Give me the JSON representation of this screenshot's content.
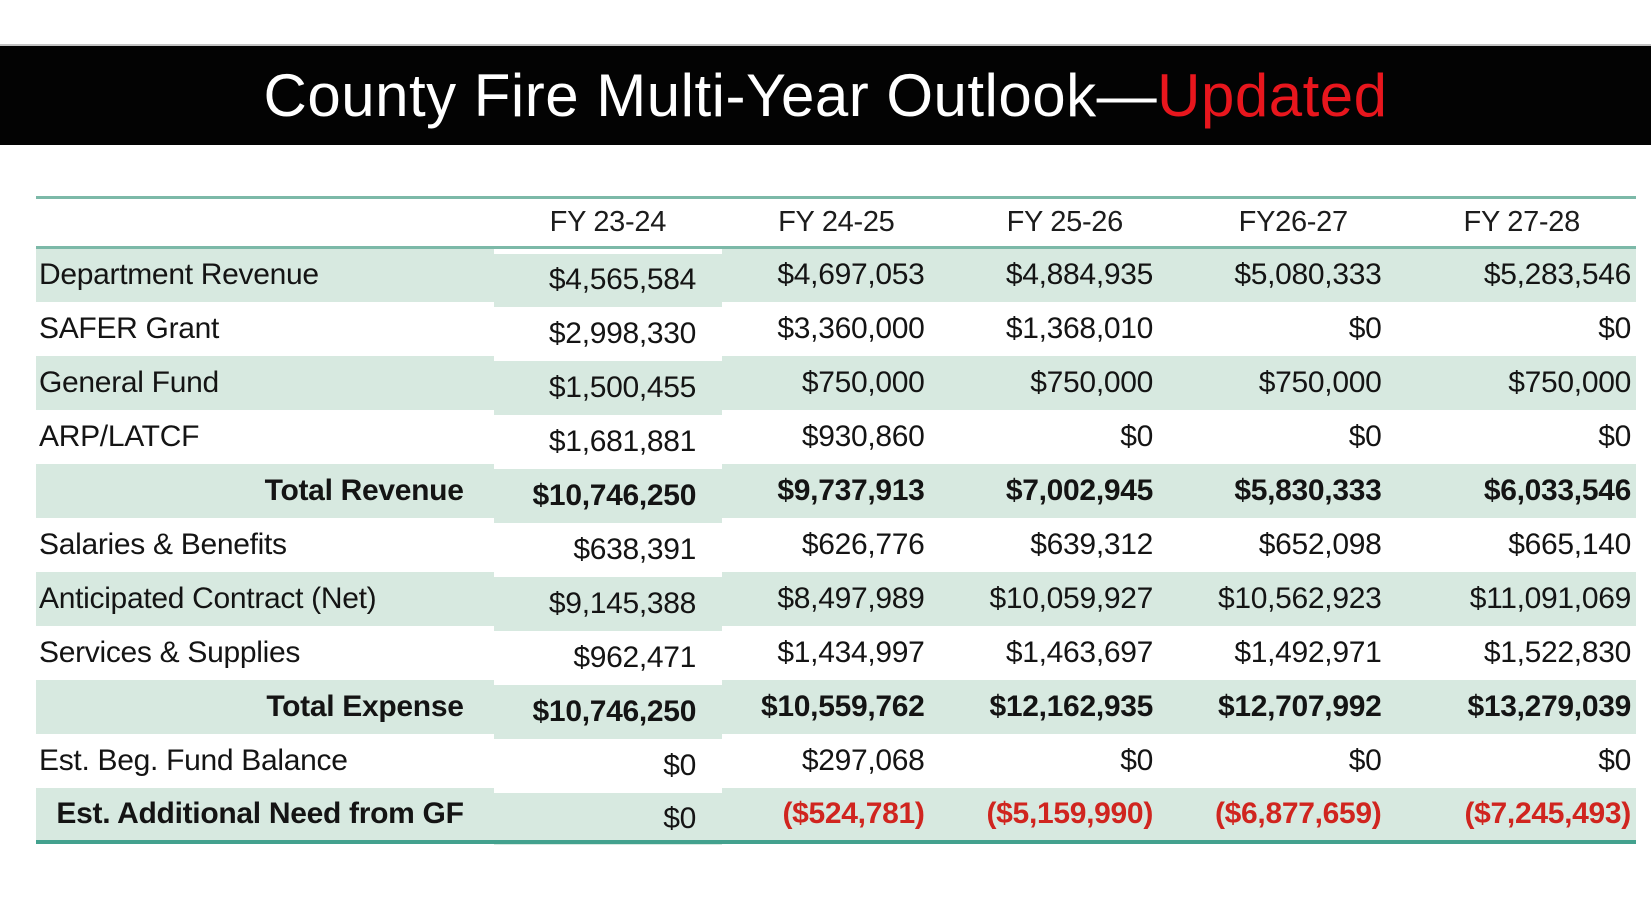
{
  "slide": {
    "title": {
      "main": "County Fire Multi-Year Outlook—",
      "highlight": "Updated"
    },
    "colors": {
      "title_bar_bg": "#030303",
      "title_text": "#ffffff",
      "title_highlight_red": "#e8161d",
      "row_stripe": "#d7e9e0",
      "table_rule_teal": "#7cb9a8",
      "table_bottom_rule_teal": "#43a18e",
      "negative_red": "#d0251f",
      "body_text": "#141414"
    }
  },
  "chart_data": {
    "type": "table",
    "title": "County Fire Multi-Year Outlook—Updated",
    "columns": [
      "FY 23-24",
      "FY 24-25",
      "FY 25-26",
      "FY26-27",
      "FY 27-28"
    ],
    "rows": [
      {
        "label": "Department Revenue",
        "values": [
          "$4,565,584",
          "$4,697,053",
          "$4,884,935",
          "$5,080,333",
          "$5,283,546"
        ],
        "label_emphasis": false,
        "values_bold": false
      },
      {
        "label": "SAFER Grant",
        "values": [
          "$2,998,330",
          "$3,360,000",
          "$1,368,010",
          "$0",
          "$0"
        ],
        "label_emphasis": false,
        "values_bold": false
      },
      {
        "label": "General Fund",
        "values": [
          "$1,500,455",
          "$750,000",
          "$750,000",
          "$750,000",
          "$750,000"
        ],
        "label_emphasis": false,
        "values_bold": false
      },
      {
        "label": "ARP/LATCF",
        "values": [
          "$1,681,881",
          "$930,860",
          "$0",
          "$0",
          "$0"
        ],
        "label_emphasis": false,
        "values_bold": false
      },
      {
        "label": "Total Revenue",
        "values": [
          "$10,746,250",
          "$9,737,913",
          "$7,002,945",
          "$5,830,333",
          "$6,033,546"
        ],
        "label_emphasis": true,
        "values_bold": true
      },
      {
        "label": "Salaries & Benefits",
        "values": [
          "$638,391",
          "$626,776",
          "$639,312",
          "$652,098",
          "$665,140"
        ],
        "label_emphasis": false,
        "values_bold": false
      },
      {
        "label": "Anticipated Contract (Net)",
        "values": [
          "$9,145,388",
          "$8,497,989",
          "$10,059,927",
          "$10,562,923",
          "$11,091,069"
        ],
        "label_emphasis": false,
        "values_bold": false
      },
      {
        "label": "Services & Supplies",
        "values": [
          "$962,471",
          "$1,434,997",
          "$1,463,697",
          "$1,492,971",
          "$1,522,830"
        ],
        "label_emphasis": false,
        "values_bold": false
      },
      {
        "label": "Total Expense",
        "values": [
          "$10,746,250",
          "$10,559,762",
          "$12,162,935",
          "$12,707,992",
          "$13,279,039"
        ],
        "label_emphasis": true,
        "values_bold": true
      },
      {
        "label": "Est. Beg. Fund Balance",
        "values": [
          "$0",
          "$297,068",
          "$0",
          "$0",
          "$0"
        ],
        "label_emphasis": false,
        "values_bold": false
      },
      {
        "label": "Est. Additional Need from GF",
        "values": [
          "$0",
          "($524,781)",
          "($5,159,990)",
          "($6,877,659)",
          "($7,245,493)"
        ],
        "label_emphasis": true,
        "values_bold": false
      }
    ]
  }
}
